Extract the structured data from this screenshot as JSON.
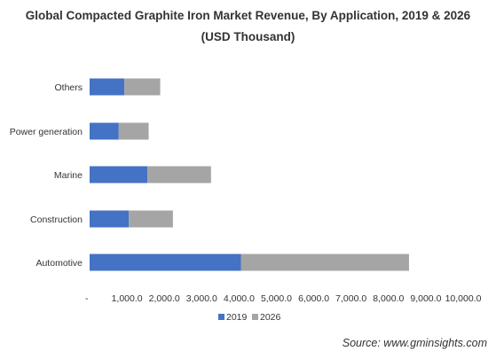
{
  "title_line1": "Global Compacted Graphite Iron Market Revenue, By Application, 2019 & 2026",
  "title_line2": "(USD Thousand)",
  "source": "Source: www.gminsights.com",
  "colors": {
    "2019": "#4472c4",
    "2026": "#a5a5a5"
  },
  "chart_data": {
    "type": "bar",
    "orientation": "horizontal",
    "stacked": true,
    "categories": [
      "Automotive",
      "Construction",
      "Marine",
      "Power generation",
      "Others"
    ],
    "series": [
      {
        "name": "2019",
        "values": [
          4050,
          1050,
          1550,
          780,
          930
        ]
      },
      {
        "name": "2026",
        "values": [
          4500,
          1180,
          1700,
          800,
          960
        ]
      }
    ],
    "xlim": [
      0,
      10000
    ],
    "x_tick_labels": [
      "-",
      "1,000.0",
      "2,000.0",
      "3,000.0",
      "4,000.0",
      "5,000.0",
      "6,000.0",
      "7,000.0",
      "8,000.0",
      "9,000.0",
      "10,000.0"
    ],
    "grid": false,
    "legend_position": "bottom"
  }
}
